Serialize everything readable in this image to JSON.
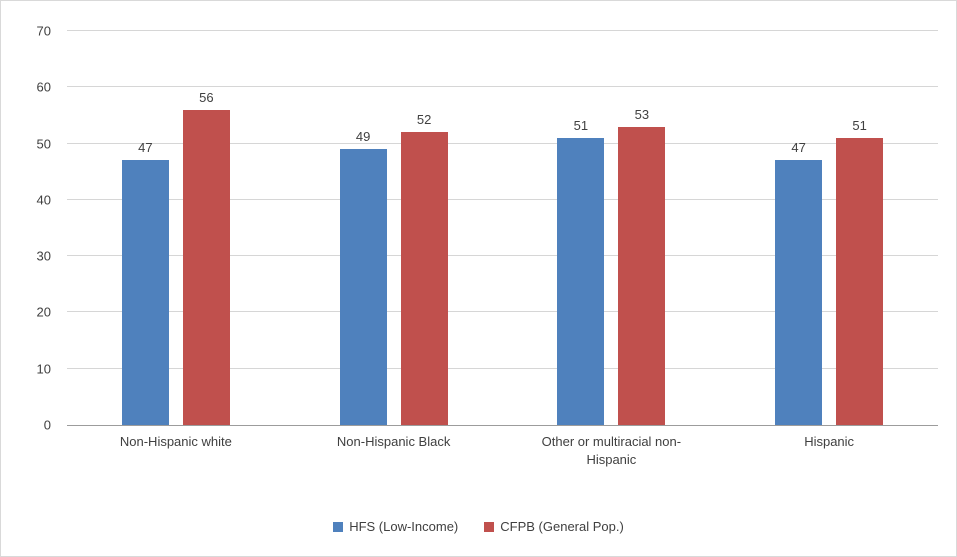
{
  "chart_data": {
    "type": "bar",
    "title": "",
    "xlabel": "",
    "ylabel": "",
    "categories": [
      "Non-Hispanic white",
      "Non-Hispanic Black",
      "Other or multiracial non-Hispanic",
      "Hispanic"
    ],
    "series": [
      {
        "name": "HFS (Low-Income)",
        "color": "#4F81BD",
        "values": [
          47,
          49,
          51,
          47
        ]
      },
      {
        "name": "CFPB (General Pop.)",
        "color": "#C0504D",
        "values": [
          56,
          52,
          53,
          51
        ]
      }
    ],
    "ylim": [
      0,
      70
    ],
    "yticks": [
      0,
      10,
      20,
      30,
      40,
      50,
      60,
      70
    ],
    "grid": true,
    "legend_position": "bottom",
    "data_labels": true,
    "colors": {
      "gridline": "#d6d6d6",
      "axis_line": "#9c9c9c",
      "text": "#404040"
    }
  }
}
